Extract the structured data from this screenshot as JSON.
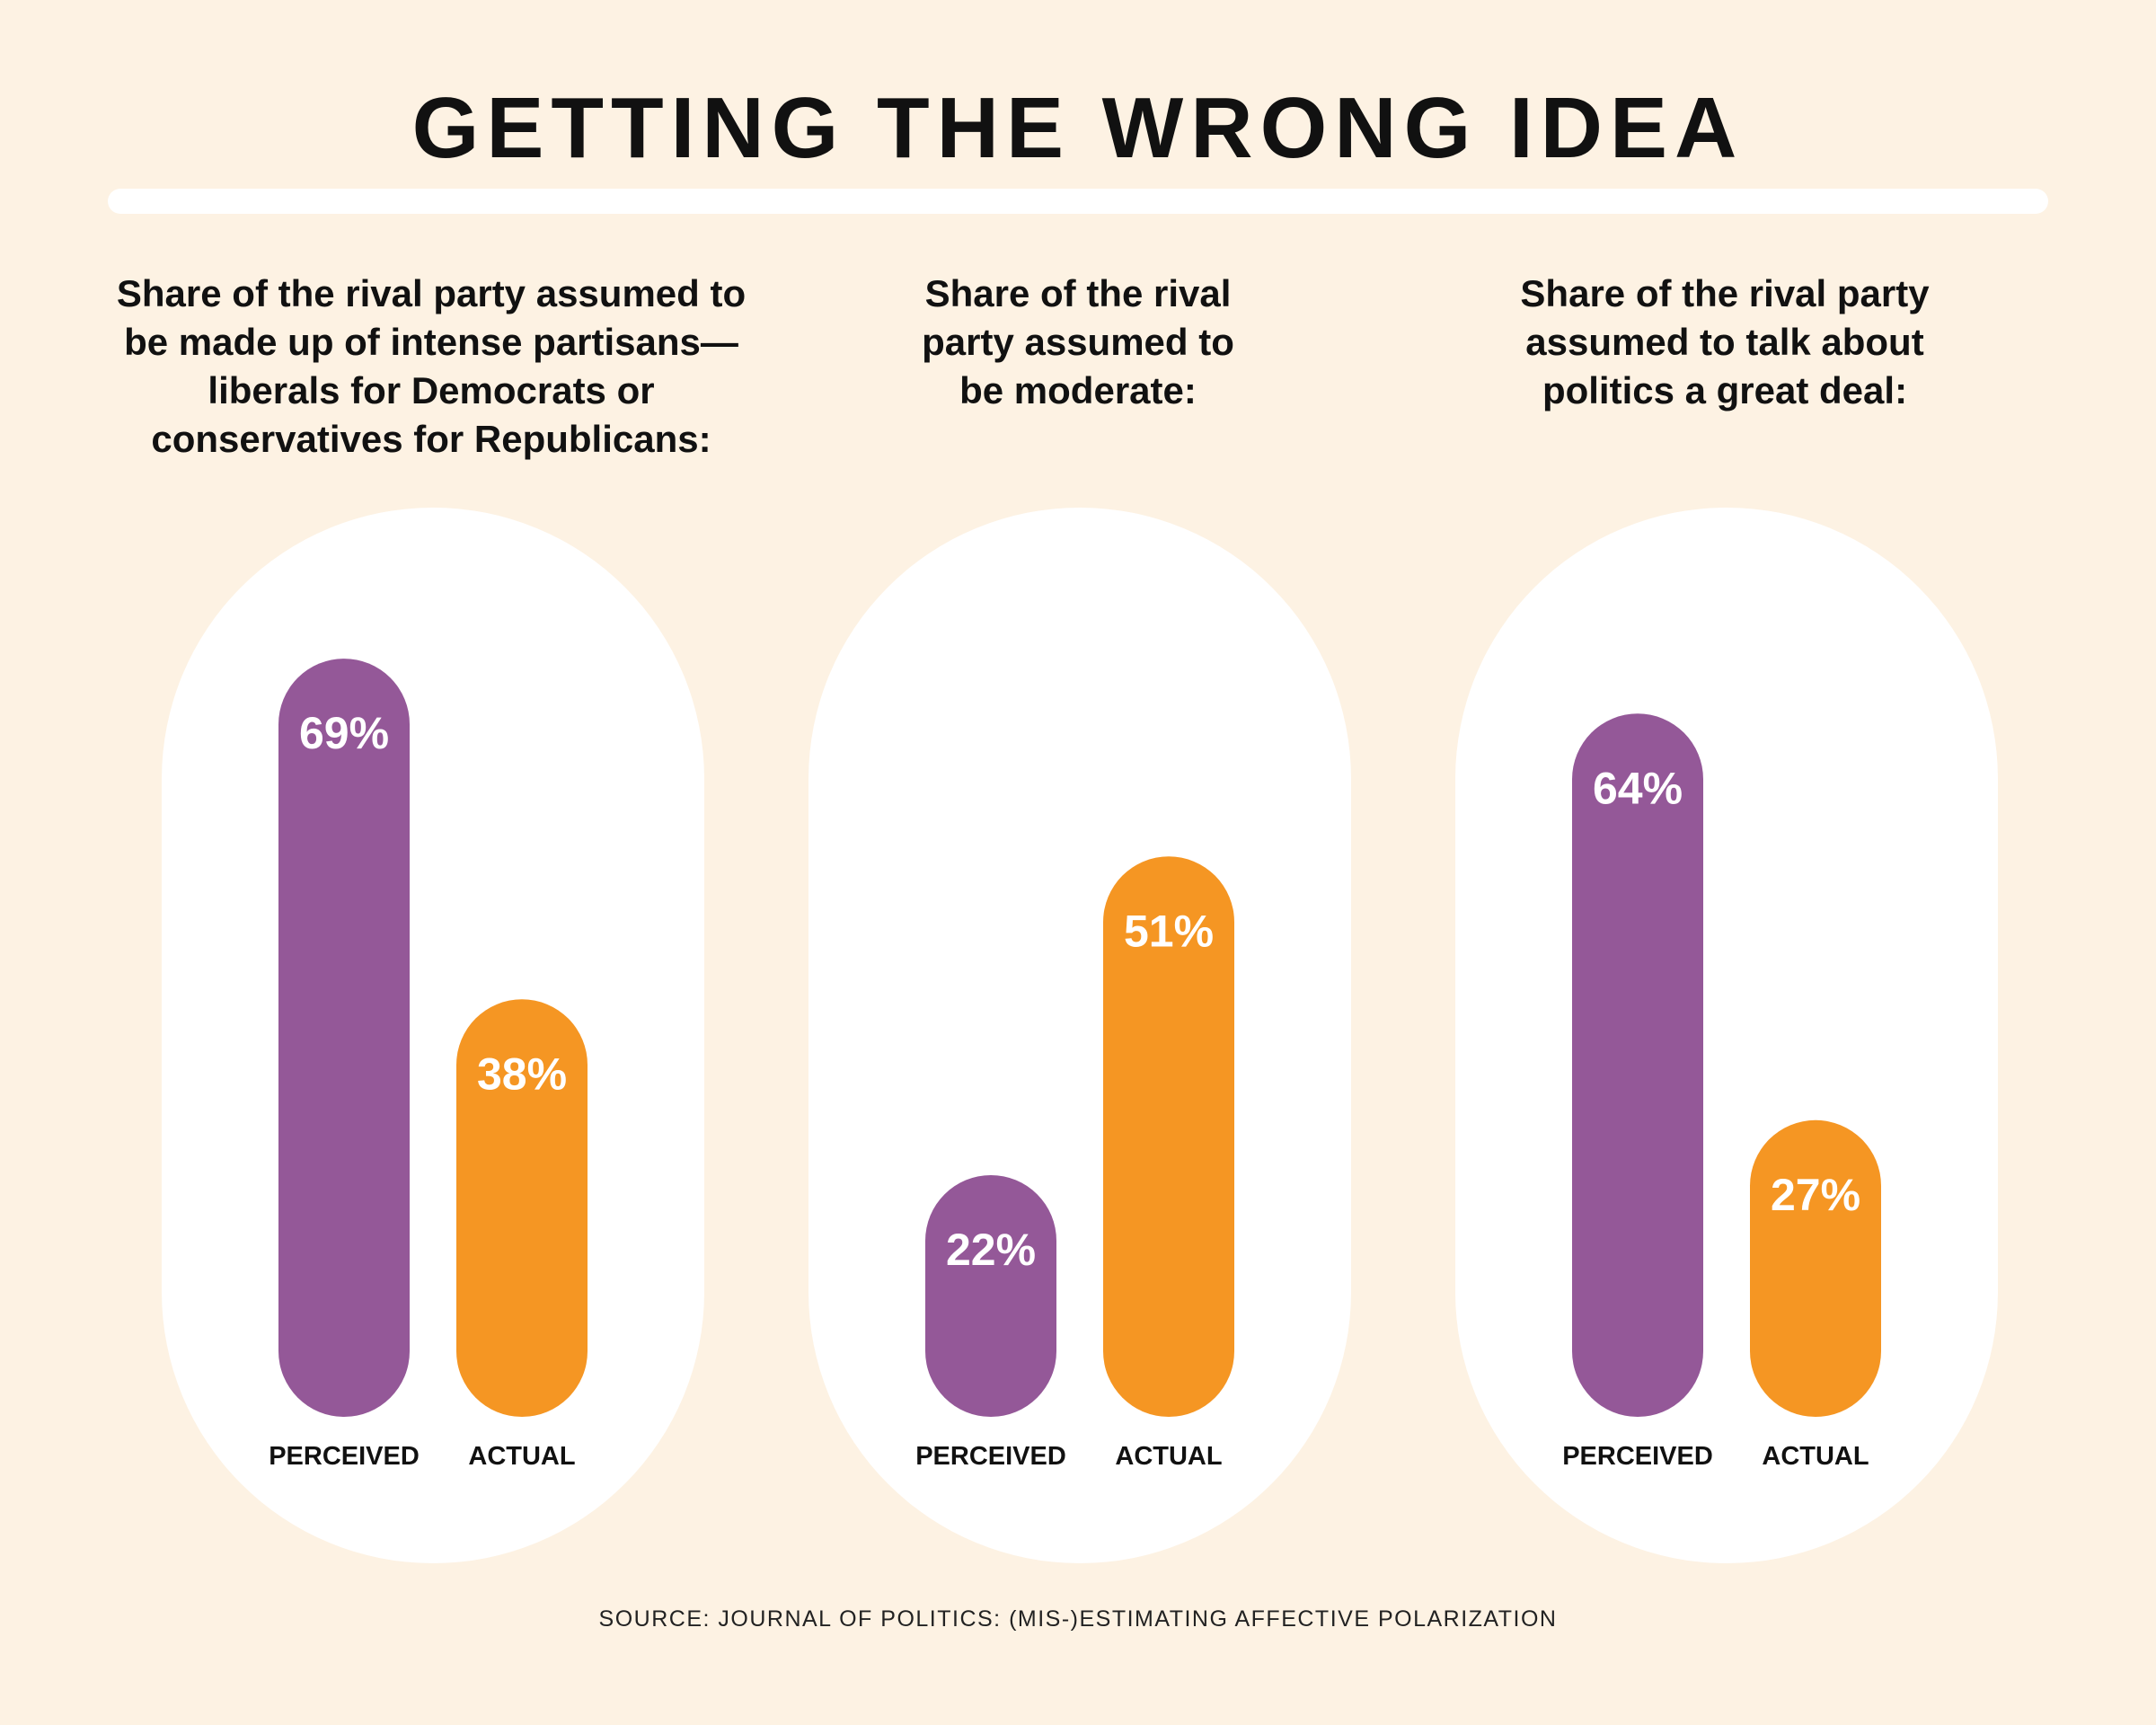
{
  "chart_data": {
    "type": "bar",
    "title": "GETTING THE WRONG IDEA",
    "source": "SOURCE: JOURNAL OF POLITICS: (MIS-)ESTIMATING AFFECTIVE POLARIZATION",
    "categories": [
      "PERCEIVED",
      "ACTUAL"
    ],
    "value_suffix": "%",
    "ylim": [
      0,
      100
    ],
    "colors": {
      "PERCEIVED": "#945898",
      "ACTUAL": "#F59623"
    },
    "panels": [
      {
        "subtitle": "Share of the rival party assumed to be made up of intense partisans—liberals for Democrats or conservatives for Republicans:",
        "values": [
          69,
          38
        ]
      },
      {
        "subtitle": "Share of the rival party assumed to be moderate:",
        "values": [
          22,
          51
        ]
      },
      {
        "subtitle": "Share of the rival party assumed to talk about politics a great deal:",
        "values": [
          64,
          27
        ]
      }
    ]
  }
}
